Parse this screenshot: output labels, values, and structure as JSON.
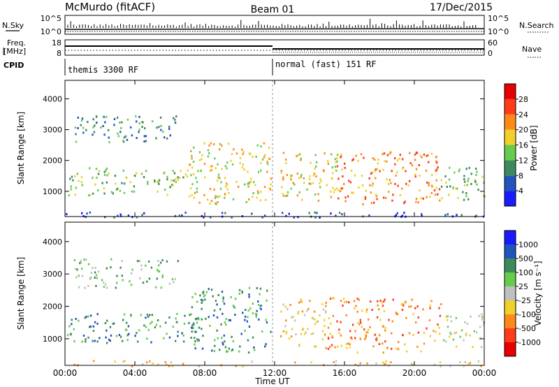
{
  "header": {
    "title": "McMurdo (fitACF)",
    "beam": "Beam 01",
    "date": "17/Dec/2015"
  },
  "top_panels": {
    "nsky_label": "N.Sky",
    "nsky_ticks": [
      "10^5",
      "10^0"
    ],
    "nsearch_label": "N.Search",
    "nsearch_ticks": [
      "10^5",
      "10^0"
    ],
    "freq_label_1": "Freq.",
    "freq_label_2": "[MHz]",
    "freq_ticks": [
      "18",
      "8"
    ],
    "nave_label": "Nave",
    "nave_ticks": [
      "60",
      "0"
    ],
    "cpid_label": "CPID",
    "cpid_modes": [
      "themis 3300 RF",
      "normal (fast) 151 RF"
    ]
  },
  "chart_data": [
    {
      "type": "heatmap",
      "title": "",
      "xlabel": "",
      "ylabel": "Slant Range [km]",
      "x_unit": "hours UT",
      "xlim": [
        0,
        24
      ],
      "ylim": [
        180,
        4600
      ],
      "yticks": [
        1000,
        2000,
        3000,
        4000
      ],
      "colorbar_label": "Power [dB]",
      "colorbar_ticks": [
        "4",
        "8",
        "12",
        "16",
        "20",
        "24",
        "28"
      ],
      "colorbar_range": [
        0,
        32
      ],
      "colors": [
        "#1a1aff",
        "#2255bb",
        "#3d8a5c",
        "#66cc4d",
        "#f0d02a",
        "#ff8a1a",
        "#ff3b1a",
        "#e60000"
      ],
      "scatter_regions": [
        {
          "t_start": 0.1,
          "t_end": 7.8,
          "r_min": 900,
          "r_max": 1800,
          "level": 3
        },
        {
          "t_start": 0.5,
          "t_end": 6.5,
          "r_min": 2600,
          "r_max": 3500,
          "level": 2
        },
        {
          "t_start": 7.0,
          "t_end": 11.8,
          "r_min": 600,
          "r_max": 2600,
          "level": 4
        },
        {
          "t_start": 12.3,
          "t_end": 15.8,
          "r_min": 700,
          "r_max": 2300,
          "level": 4
        },
        {
          "t_start": 15.5,
          "t_end": 21.5,
          "r_min": 600,
          "r_max": 2300,
          "level": 5
        },
        {
          "t_start": 21.5,
          "t_end": 24,
          "r_min": 700,
          "r_max": 1800,
          "level": 3
        },
        {
          "t_start": 0,
          "t_end": 24,
          "r_min": 180,
          "r_max": 350,
          "level": 1
        }
      ]
    },
    {
      "type": "heatmap",
      "title": "",
      "xlabel": "Time UT",
      "ylabel": "Slant Range [km]",
      "x_unit": "hours UT",
      "xlim": [
        0,
        24
      ],
      "ylim": [
        180,
        4600
      ],
      "xticks": [
        "00:00",
        "04:00",
        "08:00",
        "12:00",
        "16:00",
        "20:00",
        "00:00"
      ],
      "yticks": [
        1000,
        2000,
        3000,
        4000
      ],
      "colorbar_label": "Velocity [m s⁻¹]",
      "colorbar_ticks": [
        "-1000",
        "-500",
        "-100",
        "-25",
        "25",
        "100",
        "500",
        "1000"
      ],
      "colors": [
        "#e60000",
        "#ff3b1a",
        "#ff8a1a",
        "#f0d02a",
        "#c0c0c0",
        "#66cc4d",
        "#3d8a5c",
        "#2255bb",
        "#1a1aff"
      ],
      "scatter_regions": [
        {
          "t_start": 0.1,
          "t_end": 7.8,
          "r_min": 900,
          "r_max": 1800,
          "level": 6
        },
        {
          "t_start": 0.5,
          "t_end": 6.5,
          "r_min": 2600,
          "r_max": 3500,
          "level": 5
        },
        {
          "t_start": 7.0,
          "t_end": 11.8,
          "r_min": 600,
          "r_max": 2600,
          "level": 6
        },
        {
          "t_start": 12.3,
          "t_end": 15.0,
          "r_min": 700,
          "r_max": 2300,
          "level": 3
        },
        {
          "t_start": 15.0,
          "t_end": 21.5,
          "r_min": 600,
          "r_max": 2300,
          "level": 2
        },
        {
          "t_start": 21.5,
          "t_end": 24,
          "r_min": 700,
          "r_max": 1800,
          "level": 4
        },
        {
          "t_start": 0,
          "t_end": 24,
          "r_min": 180,
          "r_max": 350,
          "level": 3
        }
      ]
    }
  ]
}
